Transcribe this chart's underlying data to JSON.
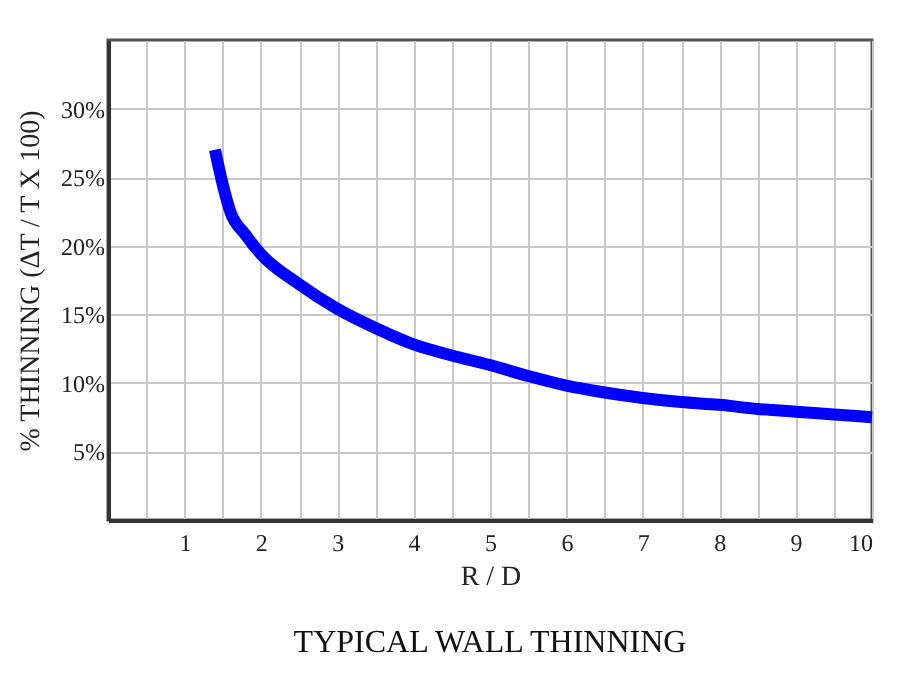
{
  "chart_data": {
    "type": "line",
    "title": "TYPICAL WALL THINNING",
    "xlabel": "R / D",
    "ylabel": "% THINNING (ΔT / T X 100)",
    "x": [
      1.4,
      1.5,
      1.6,
      1.8,
      2,
      2.5,
      3,
      3.5,
      4,
      4.5,
      5,
      5.5,
      6,
      6.5,
      7,
      7.5,
      8,
      8.5,
      9,
      9.5,
      10
    ],
    "series": [
      {
        "color": "#0000ff",
        "values": [
          27,
          24.5,
          22.5,
          20.8,
          19.4,
          17.2,
          15.4,
          14,
          12.8,
          12,
          11.3,
          10.5,
          9.8,
          9.3,
          8.9,
          8.6,
          8.4,
          8.1,
          7.9,
          7.7,
          7.5
        ]
      }
    ],
    "xlim": [
      0,
      10
    ],
    "xticks": [
      {
        "value": 0.5,
        "label": null
      },
      1,
      {
        "value": 1.5,
        "label": null
      },
      2,
      {
        "value": 2.5,
        "label": null
      },
      3,
      {
        "value": 3.5,
        "label": null
      },
      4,
      {
        "value": 4.5,
        "label": null
      },
      5,
      {
        "value": 5.5,
        "label": null
      },
      6,
      {
        "value": 6.5,
        "label": null
      },
      7,
      {
        "value": 7.5,
        "label": null
      },
      8,
      {
        "value": 8.5,
        "label": null
      },
      9,
      {
        "value": 9.5,
        "label": null
      },
      10
    ],
    "ylim": [
      0,
      35
    ],
    "yticks": [
      {
        "value": 5,
        "label": "5%"
      },
      {
        "value": 10,
        "label": "10%"
      },
      {
        "value": 15,
        "label": "15%"
      },
      {
        "value": 20,
        "label": "20%"
      },
      {
        "value": 25,
        "label": "25%"
      },
      {
        "value": 30,
        "label": "30%"
      }
    ],
    "grid": true
  }
}
